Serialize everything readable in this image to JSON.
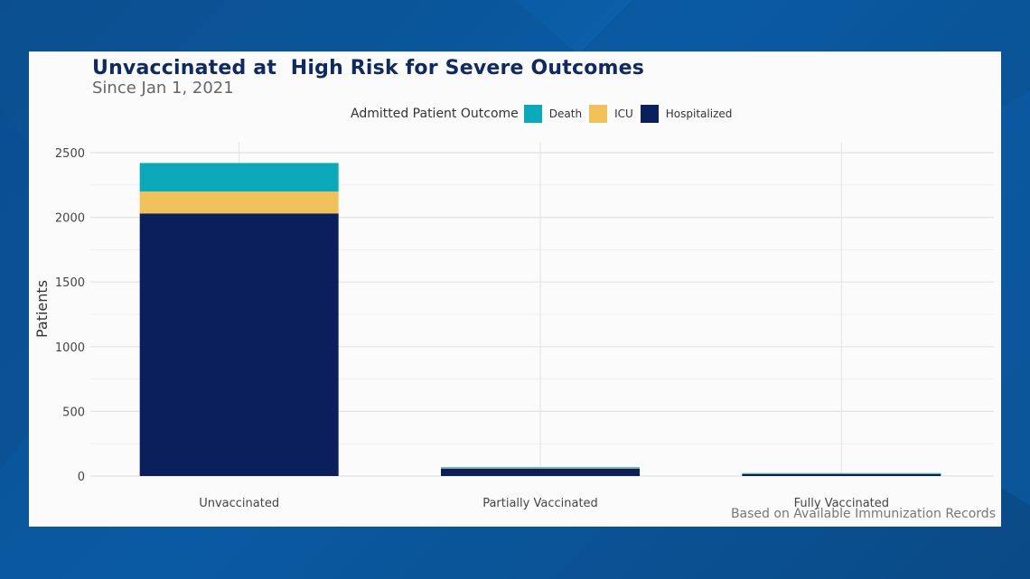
{
  "chart_data": {
    "type": "bar",
    "stacked": true,
    "title": "Unvaccinated at  High Risk for Severe Outcomes",
    "subtitle": "Since Jan 1, 2021",
    "xlabel": "",
    "ylabel": "Patients",
    "ylim": [
      0,
      2500
    ],
    "yticks": [
      0,
      500,
      1000,
      1500,
      2000,
      2500
    ],
    "grid": true,
    "legend_title": "Admitted Patient Outcome",
    "legend_position": "top",
    "categories": [
      "Unvaccinated",
      "Partially Vaccinated",
      "Fully Vaccinated"
    ],
    "series": [
      {
        "name": "Hospitalized",
        "color": "#0a1f5c",
        "values": [
          2030,
          58,
          15
        ]
      },
      {
        "name": "ICU",
        "color": "#f0c05a",
        "values": [
          170,
          4,
          2
        ]
      },
      {
        "name": "Death",
        "color": "#0aa8b8",
        "values": [
          220,
          5,
          1
        ]
      }
    ],
    "legend_order": [
      "Death",
      "ICU",
      "Hospitalized"
    ],
    "footnote": "Based on Available Immunization Records"
  }
}
